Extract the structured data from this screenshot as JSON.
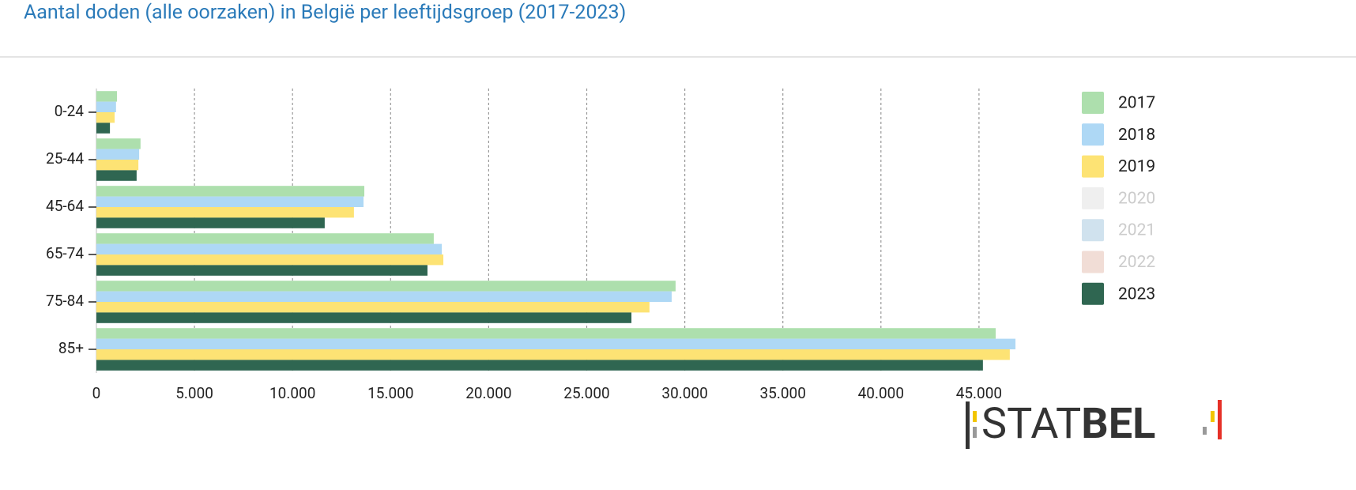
{
  "chart_data": {
    "type": "hbar",
    "title": "Aantal doden (alle oorzaken) in België per leeftijdsgroep (2017-2023)",
    "categories": [
      "0-24",
      "25-44",
      "45-64",
      "65-74",
      "75-84",
      "85+"
    ],
    "series": [
      {
        "name": "2017",
        "color": "#addfad",
        "values": [
          1050,
          2250,
          13660,
          17200,
          29530,
          45850
        ]
      },
      {
        "name": "2018",
        "color": "#aed8f5",
        "values": [
          1000,
          2180,
          13620,
          17610,
          29330,
          46860
        ]
      },
      {
        "name": "2019",
        "color": "#fde374",
        "values": [
          930,
          2140,
          13130,
          17690,
          28200,
          46570
        ]
      },
      {
        "name": "2020",
        "color": "#efefef",
        "hidden": true,
        "values": [
          null,
          null,
          null,
          null,
          null,
          null
        ]
      },
      {
        "name": "2021",
        "color": "#d0e2ee",
        "hidden": true,
        "values": [
          null,
          null,
          null,
          null,
          null,
          null
        ]
      },
      {
        "name": "2022",
        "color": "#f1ddd6",
        "hidden": true,
        "values": [
          null,
          null,
          null,
          null,
          null,
          null
        ]
      },
      {
        "name": "2023",
        "color": "#2f6651",
        "values": [
          690,
          2050,
          11640,
          16880,
          27280,
          45200
        ]
      }
    ],
    "xlim": [
      0,
      50000
    ],
    "xticks": [
      0,
      {
        "value": 5000,
        "label": "5.000"
      },
      {
        "value": 10000,
        "label": "10.000"
      },
      {
        "value": 15000,
        "label": "15.000"
      },
      {
        "value": 20000,
        "label": "20.000"
      },
      {
        "value": 25000,
        "label": "25.000"
      },
      {
        "value": 30000,
        "label": "30.000"
      },
      {
        "value": 35000,
        "label": "35.000"
      },
      {
        "value": 40000,
        "label": "40.000"
      },
      {
        "value": 45000,
        "label": "45.000"
      }
    ],
    "grid": true,
    "legend": "right"
  },
  "logo": {
    "light": "STAT",
    "bold": "BEL"
  }
}
